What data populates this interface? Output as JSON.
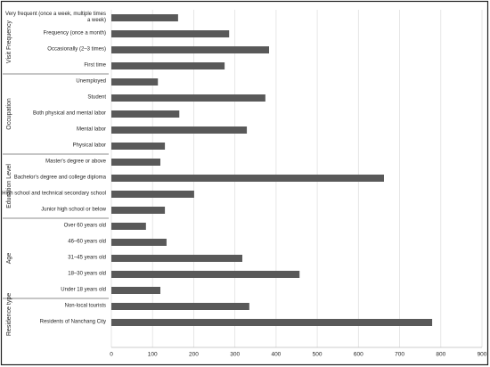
{
  "chart_data": {
    "type": "bar",
    "orientation": "horizontal",
    "color": "#595959",
    "grid": true,
    "xlim": [
      0,
      900
    ],
    "xticks": [
      0,
      100,
      200,
      300,
      400,
      500,
      600,
      700,
      800,
      900
    ],
    "groups": [
      {
        "label": "Visit Frequency",
        "categories": [
          "Very frequent (once a week, multiple times a week)",
          "Frequency (once a month)",
          "Occasionally (2–3 times)",
          "First time"
        ],
        "values": [
          162,
          286,
          383,
          275
        ]
      },
      {
        "label": "Occupation",
        "categories": [
          "Unemployed",
          "Student",
          "Both physical and mental labor",
          "Mental labor",
          "Physical labor"
        ],
        "values": [
          113,
          374,
          165,
          329,
          130
        ]
      },
      {
        "label": "Education Level",
        "categories": [
          "Master's degree or above",
          "Bachelor's degree and college diploma",
          "High school and technical secondary school",
          "Junior high school or below"
        ],
        "values": [
          119,
          662,
          201,
          130
        ]
      },
      {
        "label": "Age",
        "categories": [
          "Over 60 years old",
          "46–60 years old",
          "31–45 years old",
          "18–30 years old",
          "Under 18 years old"
        ],
        "values": [
          84,
          134,
          318,
          457,
          119
        ]
      },
      {
        "label": "Residence type",
        "categories": [
          "Non-local tourists",
          "Residents of Nanchang City"
        ],
        "values": [
          335,
          779
        ]
      }
    ]
  }
}
